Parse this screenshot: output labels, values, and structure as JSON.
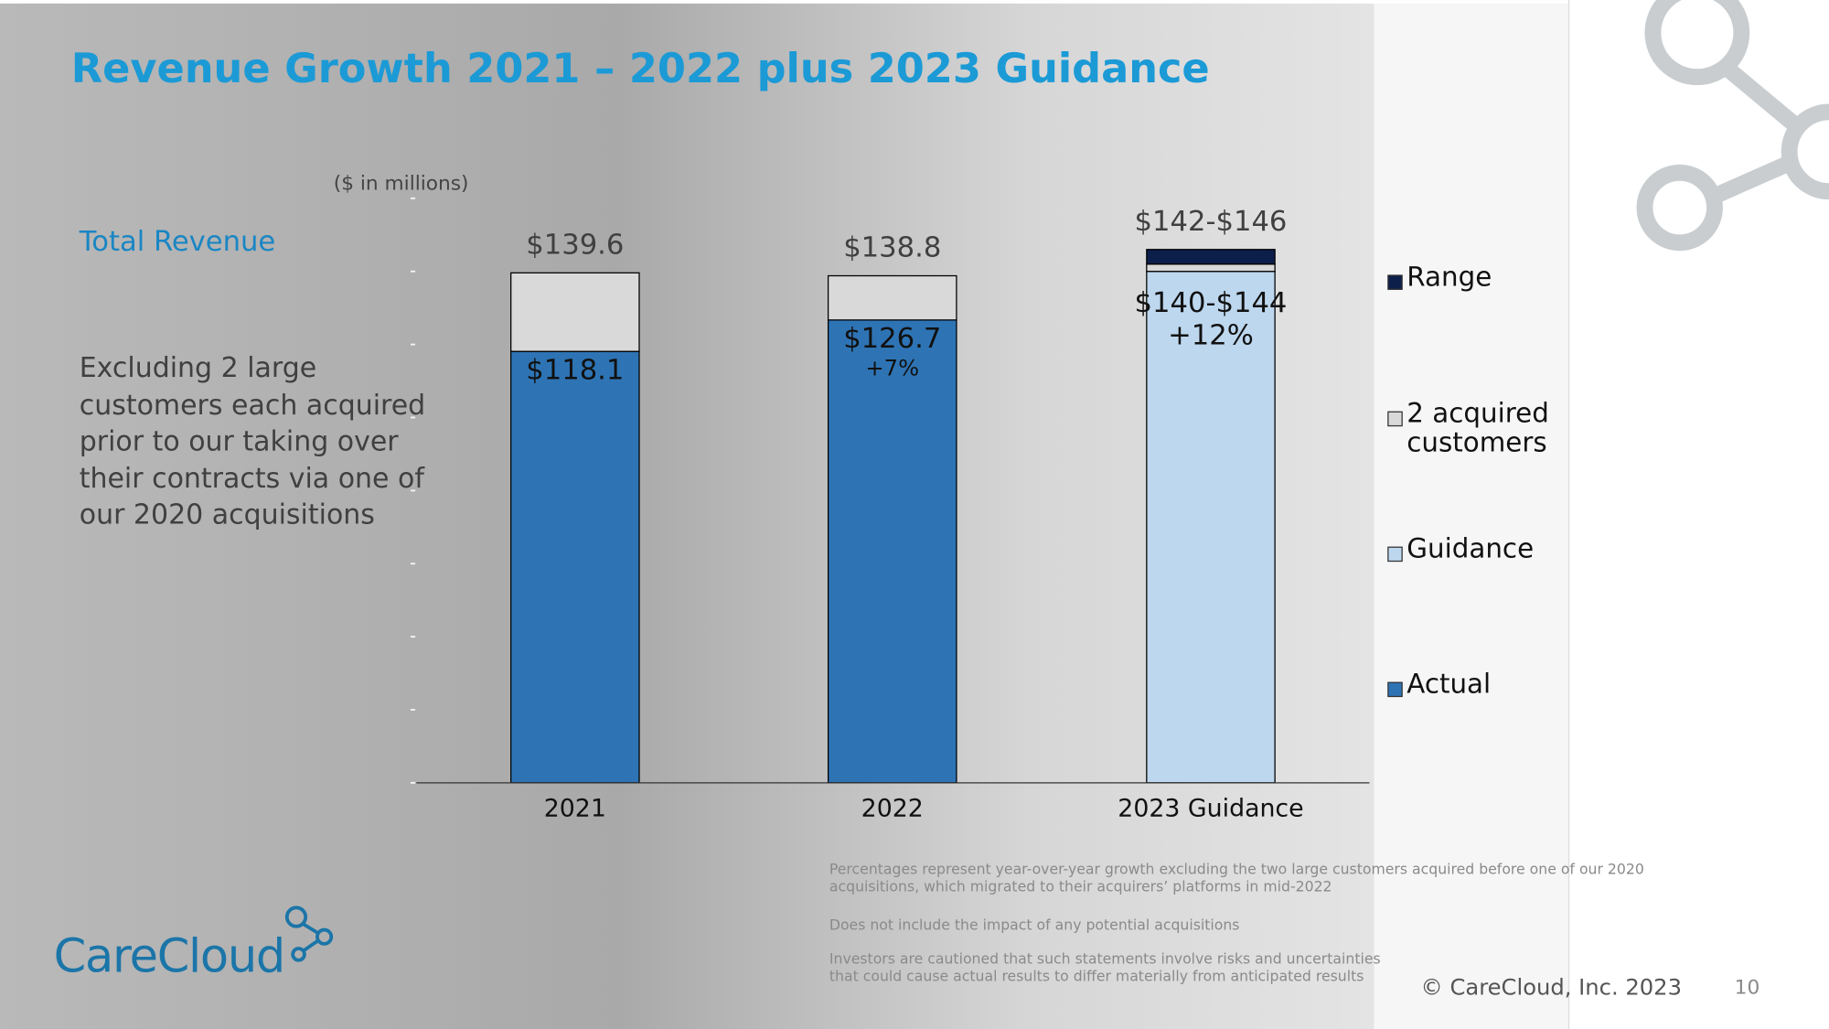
{
  "chart_data": {
    "type": "stacked-bar",
    "title": "Revenue Growth 2021 – 2022 plus 2023 Guidance",
    "subtitle": "($ in millions)",
    "categories": [
      "2021",
      "2022",
      "2023 Guidance"
    ],
    "series": [
      {
        "name": "Actual",
        "color": "#2e74b5",
        "values": [
          118.1,
          126.7,
          null
        ],
        "value_labels": [
          "$118.1",
          "$126.7",
          null
        ]
      },
      {
        "name": "Guidance",
        "color": "#bdd7ee",
        "values": [
          null,
          null,
          140
        ],
        "value_labels": [
          null,
          null,
          "$140-$144"
        ]
      },
      {
        "name": "2 acquired customers",
        "color": "#d9d9d9",
        "values": [
          21.5,
          12.1,
          2
        ]
      },
      {
        "name": "Range",
        "color": "#0c1f4a",
        "values": [
          null,
          null,
          4
        ]
      }
    ],
    "total_labels": [
      "$139.6",
      "$138.8",
      "$142-$146"
    ],
    "growth_labels": [
      null,
      "+7%",
      "+12%"
    ],
    "ylim": [
      0,
      160
    ],
    "yticks": [
      0,
      20,
      40,
      60,
      80,
      100,
      120,
      140,
      160
    ],
    "legend": "right"
  },
  "side_text": {
    "heading": "Total Revenue",
    "note": "Excluding 2 large customers each acquired prior to our taking over their contracts via one of our 2020 acquisitions"
  },
  "footnotes": [
    "Percentages represent year-over-year growth excluding the two large customers acquired before one of our 2020 acquisitions, which migrated to their acquirers’ platforms in mid-2022",
    "Does not include the impact of any potential acquisitions",
    "Investors are cautioned that such statements involve risks and uncertainties that could cause actual results to differ materially from anticipated results"
  ],
  "footer": {
    "copyright": "© CareCloud, Inc. 2023",
    "page_number": "10",
    "logo": "CareCloud"
  }
}
